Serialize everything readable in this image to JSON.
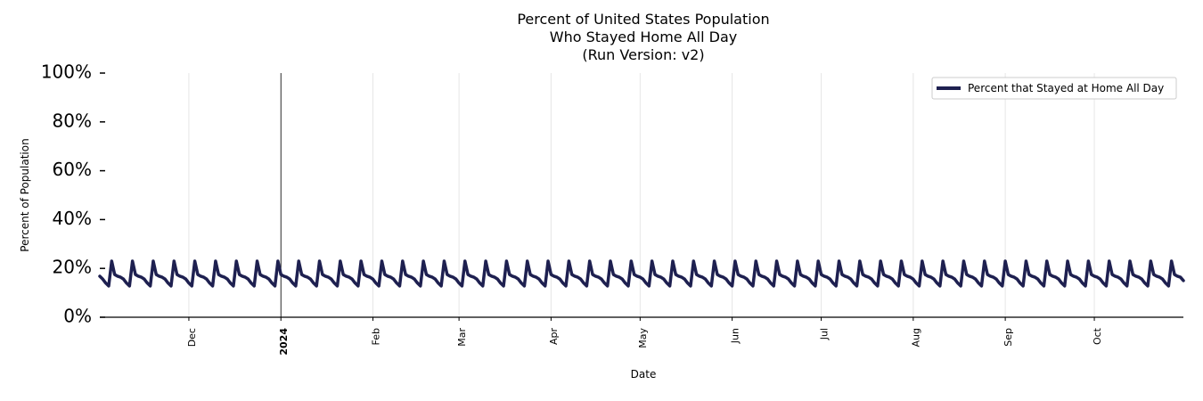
{
  "chart_data": {
    "type": "line",
    "title_lines": [
      "Percent of United States Population",
      "Who Stayed Home All Day",
      "(Run Version: v2)"
    ],
    "xlabel": "Date",
    "ylabel": "Percent of Population",
    "ylim": [
      0,
      100
    ],
    "yticks": [
      0,
      20,
      40,
      60,
      80,
      100
    ],
    "ytick_labels": [
      "0%",
      "20%",
      "40%",
      "60%",
      "80%",
      "100%"
    ],
    "xlim": [
      "2023-11-01",
      "2024-10-31"
    ],
    "xticks": [
      {
        "date": "2023-12-01",
        "label": "Dec",
        "bold": false
      },
      {
        "date": "2024-01-01",
        "label": "2024",
        "bold": true
      },
      {
        "date": "2024-02-01",
        "label": "Feb",
        "bold": false
      },
      {
        "date": "2024-03-01",
        "label": "Mar",
        "bold": false
      },
      {
        "date": "2024-04-01",
        "label": "Apr",
        "bold": false
      },
      {
        "date": "2024-05-01",
        "label": "May",
        "bold": false
      },
      {
        "date": "2024-06-01",
        "label": "Jun",
        "bold": false
      },
      {
        "date": "2024-07-01",
        "label": "Jul",
        "bold": false
      },
      {
        "date": "2024-08-01",
        "label": "Aug",
        "bold": false
      },
      {
        "date": "2024-09-01",
        "label": "Sep",
        "bold": false
      },
      {
        "date": "2024-10-01",
        "label": "Oct",
        "bold": false
      }
    ],
    "vline_date": "2024-01-01",
    "grid": "vertical",
    "legend_position": "upper right",
    "series": [
      {
        "name": "Percent that Stayed at Home All Day",
        "color": "#1e2050",
        "weekly_pattern": [
          23.0,
          17.5,
          16.8,
          16.4,
          15.6,
          14.0,
          12.8
        ],
        "first_peak_date": "2023-11-05",
        "start_value": 16.8,
        "end_date": "2024-10-31",
        "end_value": 15.0
      }
    ]
  }
}
